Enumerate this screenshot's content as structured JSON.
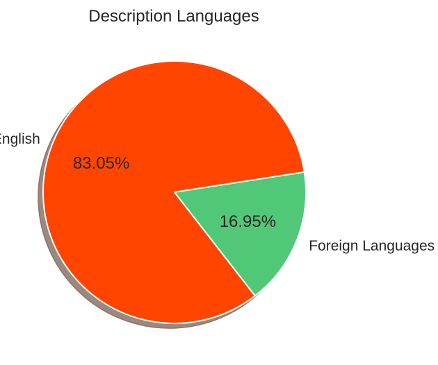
{
  "chart_data": {
    "type": "pie",
    "title": "Description Languages",
    "slices": [
      {
        "label": "English",
        "value": 83.05,
        "pct_label": "83.05%",
        "color": "#FF4500"
      },
      {
        "label": "Foreign Languages",
        "value": 16.95,
        "pct_label": "16.95%",
        "color": "#50C878"
      }
    ],
    "shadow": true,
    "shadow_color": "#9b8880",
    "edge_color": "#ffffff",
    "legend": "none"
  }
}
